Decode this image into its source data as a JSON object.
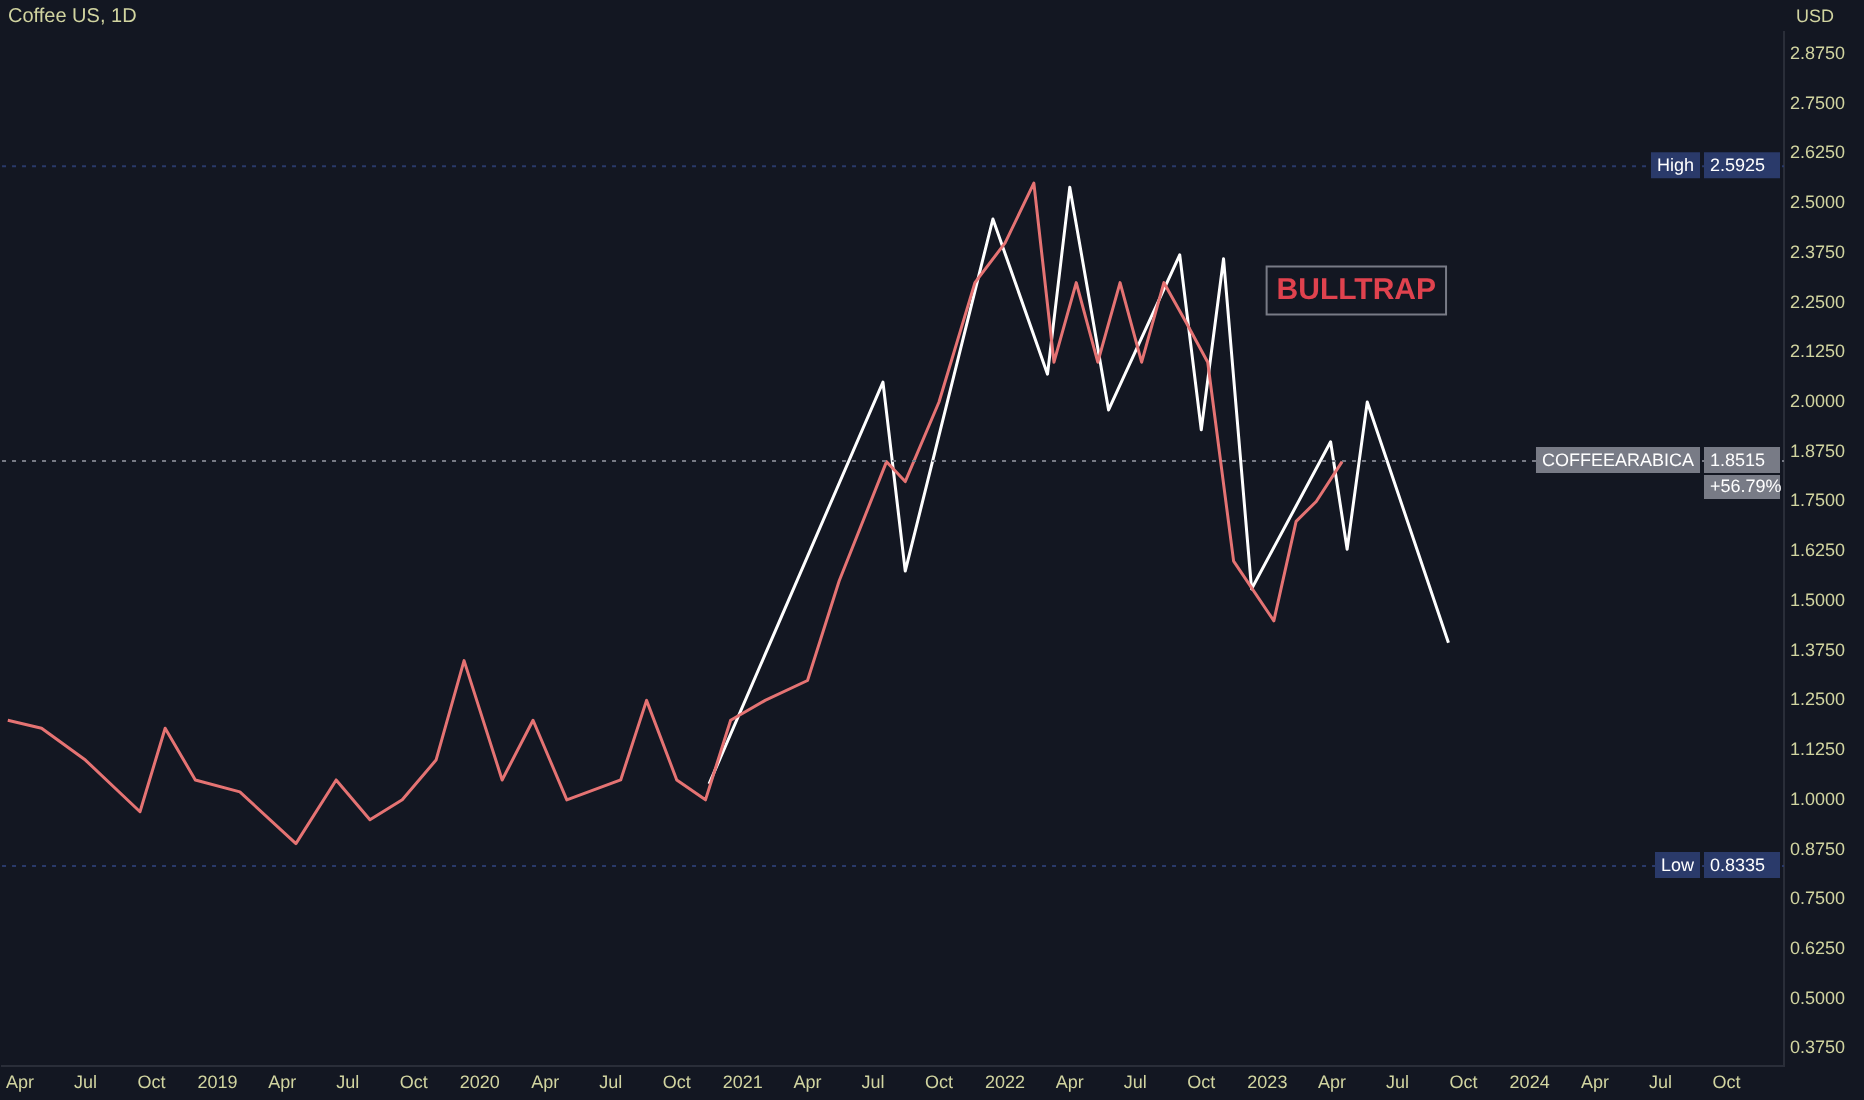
{
  "chart_data": {
    "type": "line",
    "title": "Coffee US, 1D",
    "ylabel": "USD",
    "xlim": [
      "2018-03-07",
      "2024-12-20"
    ],
    "xticks": [
      {
        "value": "2018-04-01",
        "label": "Apr"
      },
      {
        "value": "2018-07-01",
        "label": "Jul"
      },
      {
        "value": "2018-10-01",
        "label": "Oct"
      },
      {
        "value": "2019-01-01",
        "label": "2019"
      },
      {
        "value": "2019-04-01",
        "label": "Apr"
      },
      {
        "value": "2019-07-01",
        "label": "Jul"
      },
      {
        "value": "2019-10-01",
        "label": "Oct"
      },
      {
        "value": "2020-01-01",
        "label": "2020"
      },
      {
        "value": "2020-04-01",
        "label": "Apr"
      },
      {
        "value": "2020-07-01",
        "label": "Jul"
      },
      {
        "value": "2020-10-01",
        "label": "Oct"
      },
      {
        "value": "2021-01-01",
        "label": "2021"
      },
      {
        "value": "2021-04-01",
        "label": "Apr"
      },
      {
        "value": "2021-07-01",
        "label": "Jul"
      },
      {
        "value": "2021-10-01",
        "label": "Oct"
      },
      {
        "value": "2022-01-01",
        "label": "2022"
      },
      {
        "value": "2022-04-01",
        "label": "Apr"
      },
      {
        "value": "2022-07-01",
        "label": "Jul"
      },
      {
        "value": "2022-10-01",
        "label": "Oct"
      },
      {
        "value": "2023-01-01",
        "label": "2023"
      },
      {
        "value": "2023-04-01",
        "label": "Apr"
      },
      {
        "value": "2023-07-01",
        "label": "Jul"
      },
      {
        "value": "2023-10-01",
        "label": "Oct"
      },
      {
        "value": "2024-01-01",
        "label": "2024"
      },
      {
        "value": "2024-04-01",
        "label": "Apr"
      },
      {
        "value": "2024-07-01",
        "label": "Jul"
      },
      {
        "value": "2024-10-01",
        "label": "Oct"
      }
    ],
    "ylim": [
      0.33,
      2.93
    ],
    "yticks": [
      {
        "value": 0.375,
        "label": "0.3750"
      },
      {
        "value": 0.5,
        "label": "0.5000"
      },
      {
        "value": 0.625,
        "label": "0.6250"
      },
      {
        "value": 0.75,
        "label": "0.7500"
      },
      {
        "value": 0.875,
        "label": "0.8750"
      },
      {
        "value": 1.0,
        "label": "1.0000"
      },
      {
        "value": 1.125,
        "label": "1.1250"
      },
      {
        "value": 1.25,
        "label": "1.2500"
      },
      {
        "value": 1.375,
        "label": "1.3750"
      },
      {
        "value": 1.5,
        "label": "1.5000"
      },
      {
        "value": 1.625,
        "label": "1.6250"
      },
      {
        "value": 1.75,
        "label": "1.7500"
      },
      {
        "value": 1.875,
        "label": "1.8750"
      },
      {
        "value": 2.0,
        "label": "2.0000"
      },
      {
        "value": 2.125,
        "label": "2.1250"
      },
      {
        "value": 2.25,
        "label": "2.2500"
      },
      {
        "value": 2.375,
        "label": "2.3750"
      },
      {
        "value": 2.5,
        "label": "2.5000"
      },
      {
        "value": 2.625,
        "label": "2.6250"
      },
      {
        "value": 2.75,
        "label": "2.7500"
      },
      {
        "value": 2.875,
        "label": "2.8750"
      }
    ],
    "grid": false,
    "legend": false,
    "marker": "none",
    "line_style": "solid",
    "series": [
      {
        "color": "#e57373",
        "x": [
          "2018-03-15",
          "2018-05-01",
          "2018-07-01",
          "2018-09-15",
          "2018-10-20",
          "2018-12-01",
          "2019-02-01",
          "2019-04-20",
          "2019-06-15",
          "2019-08-01",
          "2019-09-15",
          "2019-11-01",
          "2019-12-10",
          "2020-02-01",
          "2020-03-15",
          "2020-05-01",
          "2020-07-15",
          "2020-08-20",
          "2020-10-01",
          "2020-11-10",
          "2020-12-15",
          "2021-02-01",
          "2021-04-01",
          "2021-05-15",
          "2021-07-20",
          "2021-08-15",
          "2021-10-01",
          "2021-11-20",
          "2022-01-01",
          "2022-02-10",
          "2022-03-10",
          "2022-04-10",
          "2022-05-10",
          "2022-06-10",
          "2022-07-10",
          "2022-08-10",
          "2022-09-10",
          "2022-10-10",
          "2022-11-15",
          "2023-01-10",
          "2023-02-10",
          "2023-03-10",
          "2023-04-15"
        ],
        "values": [
          1.2,
          1.18,
          1.1,
          0.97,
          1.18,
          1.05,
          1.02,
          0.89,
          1.05,
          0.95,
          1.0,
          1.1,
          1.35,
          1.05,
          1.2,
          1.0,
          1.05,
          1.25,
          1.05,
          1.0,
          1.2,
          1.25,
          1.3,
          1.55,
          1.85,
          1.8,
          2.0,
          2.3,
          2.4,
          2.55,
          2.1,
          2.3,
          2.1,
          2.3,
          2.1,
          2.3,
          2.2,
          2.1,
          1.6,
          1.45,
          1.7,
          1.75,
          1.85
        ]
      },
      {
        "color": "#ffffff",
        "x": [
          "2020-11-15",
          "2021-07-15",
          "2021-08-15",
          "2021-12-15",
          "2022-03-01",
          "2022-04-01",
          "2022-05-25",
          "2022-09-01",
          "2022-10-01",
          "2022-11-01",
          "2022-12-10",
          "2023-03-30",
          "2023-04-22",
          "2023-05-20",
          "2023-09-10"
        ],
        "values": [
          1.04,
          2.05,
          1.575,
          2.46,
          2.07,
          2.54,
          1.98,
          2.37,
          1.93,
          2.36,
          1.53,
          1.9,
          1.63,
          2.0,
          1.395
        ]
      }
    ],
    "ref_lines": [
      {
        "axis": "y",
        "value": 2.5925,
        "label": "High",
        "color": "#2a3a6a",
        "line_style": "dotted"
      },
      {
        "axis": "y",
        "value": 0.8335,
        "label": "Low",
        "color": "#2a3a6a",
        "line_style": "dotted"
      },
      {
        "axis": "y",
        "value": 1.8515,
        "label": "COFFEEARABICA",
        "color": "#787b86",
        "line_style": "dotted"
      }
    ],
    "annotations": [
      "BULLTRAP",
      "+56.79%",
      {
        "text": "2.5925",
        "y": 2.5925
      },
      {
        "text": "0.8335",
        "y": 0.8335
      },
      {
        "text": "1.8515",
        "y": 1.8515
      }
    ]
  }
}
